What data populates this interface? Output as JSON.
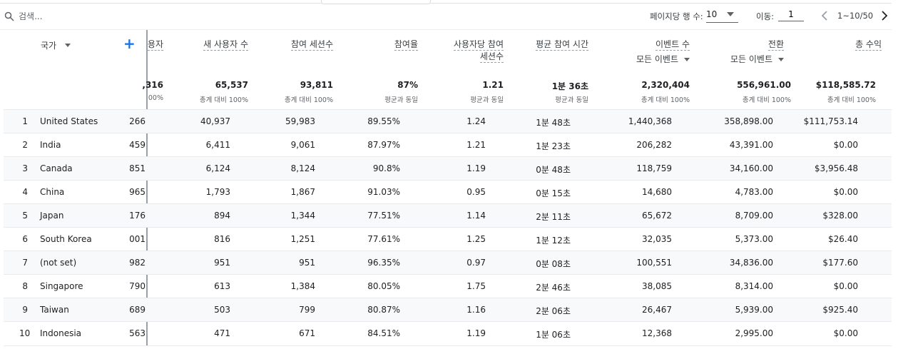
{
  "search": {
    "placeholder": "검색..."
  },
  "pagination": {
    "rows_label": "페이지당 행 수:",
    "rows_value": "10",
    "goto_label": "이동:",
    "goto_value": "1",
    "range": "1~10/50"
  },
  "table": {
    "dimension_header": "국가",
    "columns": [
      {
        "title": "용자"
      },
      {
        "title": "새 사용자 수"
      },
      {
        "title": "참여 세션수"
      },
      {
        "title": "참여율"
      },
      {
        "title": "사용자당 참여",
        "title2": "세션수"
      },
      {
        "title": "평균 참여 시간"
      },
      {
        "title": "이벤트 수",
        "sub": "모든 이벤트"
      },
      {
        "title": "전환",
        "sub": "모든 이벤트"
      },
      {
        "title": "총 수익"
      }
    ],
    "totals": [
      ",316",
      "65,537",
      "93,811",
      "87%",
      "1.21",
      "1분 36초",
      "2,320,404",
      "556,961.00",
      "$118,585.72"
    ],
    "totals_sub": [
      "00%",
      "총계 대비 100%",
      "총계 대비 100%",
      "평균과 동일",
      "평균과 동일",
      "평균과 동일",
      "총계 대비 100%",
      "총계 대비 100%",
      "총계 대비 100%"
    ],
    "rows": [
      {
        "index": "1",
        "country": "United States",
        "values": [
          "266",
          "40,937",
          "59,983",
          "89.55%",
          "1.24",
          "1분 48초",
          "1,440,368",
          "358,898.00",
          "$111,753.14"
        ]
      },
      {
        "index": "2",
        "country": "India",
        "values": [
          "459",
          "6,411",
          "9,061",
          "87.97%",
          "1.21",
          "1분 23초",
          "206,282",
          "43,391.00",
          "$0.00"
        ]
      },
      {
        "index": "3",
        "country": "Canada",
        "values": [
          "851",
          "6,124",
          "8,124",
          "90.8%",
          "1.19",
          "0분 48초",
          "118,759",
          "34,160.00",
          "$3,956.48"
        ]
      },
      {
        "index": "4",
        "country": "China",
        "values": [
          "965",
          "1,793",
          "1,867",
          "91.03%",
          "0.95",
          "0분 15초",
          "14,680",
          "4,783.00",
          "$0.00"
        ]
      },
      {
        "index": "5",
        "country": "Japan",
        "values": [
          "176",
          "894",
          "1,344",
          "77.51%",
          "1.14",
          "2분 11초",
          "65,672",
          "8,709.00",
          "$328.00"
        ]
      },
      {
        "index": "6",
        "country": "South Korea",
        "values": [
          "001",
          "816",
          "1,251",
          "77.61%",
          "1.25",
          "1분 12초",
          "32,035",
          "5,373.00",
          "$26.40"
        ]
      },
      {
        "index": "7",
        "country": "(not set)",
        "values": [
          "982",
          "951",
          "951",
          "96.35%",
          "0.97",
          "0분 08초",
          "100,551",
          "34,836.00",
          "$177.60"
        ]
      },
      {
        "index": "8",
        "country": "Singapore",
        "values": [
          "790",
          "613",
          "1,384",
          "80.05%",
          "1.75",
          "2분 46초",
          "38,085",
          "8,314.00",
          "$0.00"
        ]
      },
      {
        "index": "9",
        "country": "Taiwan",
        "values": [
          "689",
          "503",
          "799",
          "80.87%",
          "1.16",
          "2분 06초",
          "26,467",
          "5,939.00",
          "$925.40"
        ]
      },
      {
        "index": "10",
        "country": "Indonesia",
        "values": [
          "563",
          "471",
          "671",
          "84.51%",
          "1.19",
          "1분 06초",
          "12,368",
          "2,995.00",
          "$0.00"
        ]
      }
    ]
  }
}
